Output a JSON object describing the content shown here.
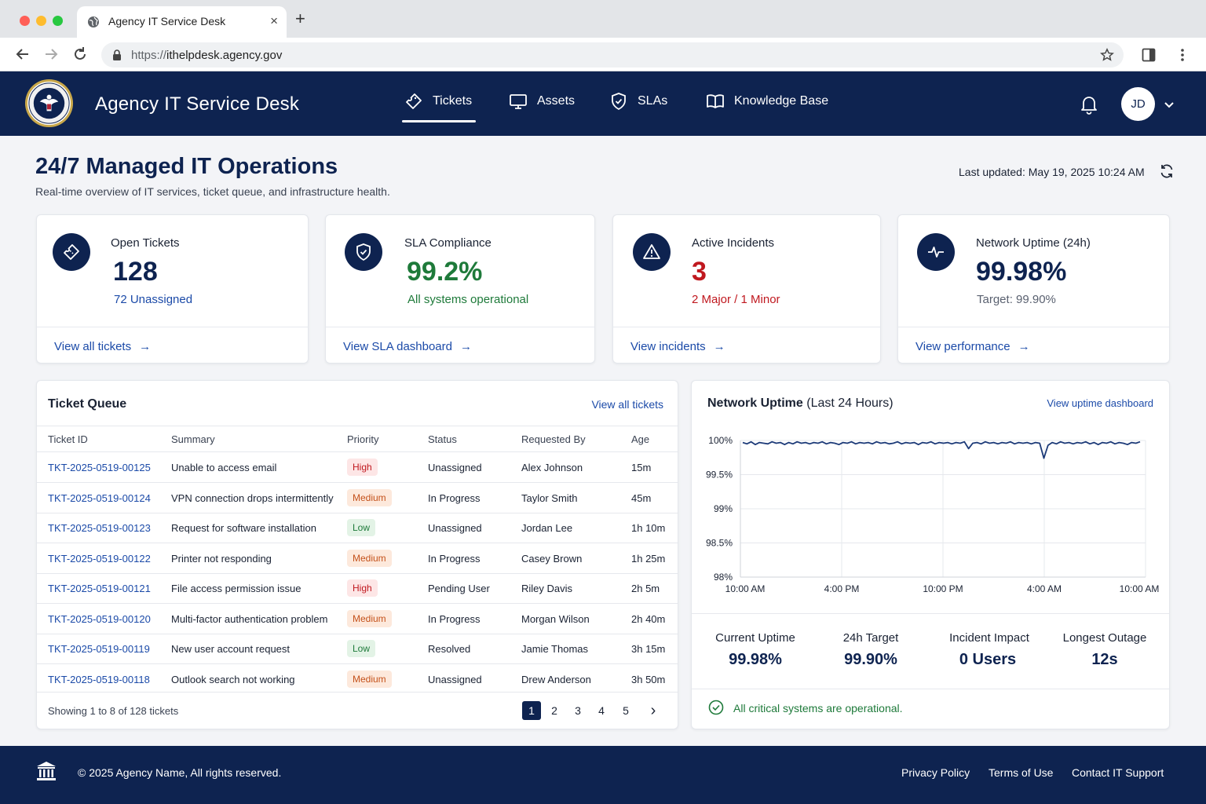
{
  "browser": {
    "tab_title": "Agency IT Service Desk",
    "new_tab": "+",
    "close": "×",
    "url_protocol": "https://",
    "url_host": "ithelpdesk.agency.gov"
  },
  "header": {
    "app_title": "Agency IT Service Desk",
    "nav": [
      {
        "label": "Tickets",
        "icon": "ticket-icon",
        "active": true
      },
      {
        "label": "Assets",
        "icon": "monitor-icon"
      },
      {
        "label": "SLAs",
        "icon": "shield-icon"
      },
      {
        "label": "Knowledge Base",
        "icon": "book-icon"
      }
    ],
    "user_initials": "JD"
  },
  "page": {
    "title": "24/7 Managed IT Operations",
    "subtitle": "Real-time overview of IT services, ticket queue, and infrastructure health.",
    "last_updated_label": "Last updated:",
    "last_updated_value": "May 19, 2025 10:24 AM"
  },
  "kpis": [
    {
      "label": "Open Tickets",
      "value": "128",
      "sub": "72 Unassigned",
      "link": "View all tickets",
      "icon": "ticket-icon",
      "value_color": "#0e2350",
      "sub_color": "#1b4aa8"
    },
    {
      "label": "SLA Compliance",
      "value": "99.2%",
      "sub": "All systems operational",
      "link": "View SLA dashboard",
      "icon": "shield-check-icon",
      "value_color": "#1e7a3a",
      "sub_color": "#1e7a3a"
    },
    {
      "label": "Active Incidents",
      "value": "3",
      "sub": "2 Major / 1 Minor",
      "link": "View incidents",
      "icon": "warning-icon",
      "value_color": "#c0181f",
      "sub_color": "#c0181f"
    },
    {
      "label": "Network Uptime (24h)",
      "value": "99.98%",
      "sub": "Target: 99.90%",
      "link": "View performance",
      "icon": "pulse-icon",
      "value_color": "#0e2350",
      "sub_color": "#5a6170"
    }
  ],
  "queue": {
    "title": "Ticket Queue",
    "view_all": "View all tickets",
    "columns": [
      "Ticket ID",
      "Summary",
      "Priority",
      "Status",
      "Requested By",
      "Age"
    ],
    "rows": [
      {
        "id": "TKT-2025-0519-00125",
        "summary": "Unable to access email",
        "priority": "High",
        "status": "Unassigned",
        "requester": "Alex Johnson",
        "age": "15m"
      },
      {
        "id": "TKT-2025-0519-00124",
        "summary": "VPN connection drops intermittently",
        "priority": "Medium",
        "status": "In Progress",
        "requester": "Taylor Smith",
        "age": "45m"
      },
      {
        "id": "TKT-2025-0519-00123",
        "summary": "Request for software installation",
        "priority": "Low",
        "status": "Unassigned",
        "requester": "Jordan Lee",
        "age": "1h 10m"
      },
      {
        "id": "TKT-2025-0519-00122",
        "summary": "Printer not responding",
        "priority": "Medium",
        "status": "In Progress",
        "requester": "Casey Brown",
        "age": "1h 25m"
      },
      {
        "id": "TKT-2025-0519-00121",
        "summary": "File access permission issue",
        "priority": "High",
        "status": "Pending User",
        "requester": "Riley Davis",
        "age": "2h 5m"
      },
      {
        "id": "TKT-2025-0519-00120",
        "summary": "Multi-factor authentication problem",
        "priority": "Medium",
        "status": "In Progress",
        "requester": "Morgan Wilson",
        "age": "2h 40m"
      },
      {
        "id": "TKT-2025-0519-00119",
        "summary": "New user account request",
        "priority": "Low",
        "status": "Resolved",
        "requester": "Jamie Thomas",
        "age": "3h 15m"
      },
      {
        "id": "TKT-2025-0519-00118",
        "summary": "Outlook search not working",
        "priority": "Medium",
        "status": "Unassigned",
        "requester": "Drew Anderson",
        "age": "3h 50m"
      }
    ],
    "priority_styles": {
      "High": {
        "bg": "#fde6e6",
        "fg": "#c0181f"
      },
      "Medium": {
        "bg": "#fde9dc",
        "fg": "#c4511a"
      },
      "Low": {
        "bg": "#e3f3e6",
        "fg": "#1e7a3a"
      }
    },
    "footer": "Showing 1 to 8 of 128 tickets",
    "pages": [
      "1",
      "2",
      "3",
      "4",
      "5"
    ],
    "next": "›"
  },
  "uptime": {
    "title": "Network Uptime",
    "title_suffix": "(Last 24 Hours)",
    "link": "View uptime dashboard",
    "stats": [
      {
        "label": "Current Uptime",
        "value": "99.98%"
      },
      {
        "label": "24h Target",
        "value": "99.90%"
      },
      {
        "label": "Incident Impact",
        "value": "0 Users"
      },
      {
        "label": "Longest Outage",
        "value": "12s"
      }
    ],
    "status": "All critical systems are operational."
  },
  "chart_data": {
    "type": "line",
    "title": "Network Uptime (Last 24 Hours)",
    "x_tick_labels": [
      "10:00 AM",
      "4:00 PM",
      "10:00 PM",
      "4:00 AM",
      "10:00 AM"
    ],
    "y_tick_labels": [
      "100%",
      "99.5%",
      "99%",
      "98.5%",
      "98%"
    ],
    "ylim": [
      98,
      100
    ],
    "grid": true,
    "line_color": "#1c3a78",
    "series": [
      {
        "values": [
          99.97,
          99.95,
          99.98,
          99.94,
          99.97,
          99.96,
          99.95,
          99.98,
          99.96,
          99.97,
          99.94,
          99.97,
          99.95,
          99.98,
          99.96,
          99.97,
          99.95,
          99.97,
          99.96,
          99.98,
          99.95,
          99.97,
          99.96,
          99.94,
          99.97,
          99.96,
          99.98,
          99.95,
          99.97,
          99.96,
          99.97,
          99.95,
          99.98,
          99.96,
          99.97,
          99.95,
          99.96,
          99.98,
          99.95,
          99.97,
          99.96,
          99.97,
          99.94,
          99.97,
          99.96,
          99.98,
          99.95,
          99.97,
          99.96,
          99.97,
          99.95,
          99.97,
          99.96,
          99.98,
          99.88,
          99.96,
          99.97,
          99.95,
          99.98,
          99.96,
          99.97,
          99.95,
          99.97,
          99.96,
          99.98,
          99.95,
          99.97,
          99.96,
          99.97,
          99.95,
          99.97,
          99.96,
          99.74,
          99.93,
          99.97,
          99.95,
          99.98,
          99.96,
          99.97,
          99.95,
          99.97,
          99.96,
          99.98,
          99.95,
          99.97,
          99.94,
          99.97,
          99.96,
          99.98,
          99.95,
          99.97,
          99.96,
          99.94,
          99.97,
          99.96,
          99.98
        ]
      }
    ]
  },
  "footer": {
    "copyright": "© 2025 Agency Name, All rights reserved.",
    "links": [
      "Privacy Policy",
      "Terms of Use",
      "Contact IT Support"
    ]
  }
}
